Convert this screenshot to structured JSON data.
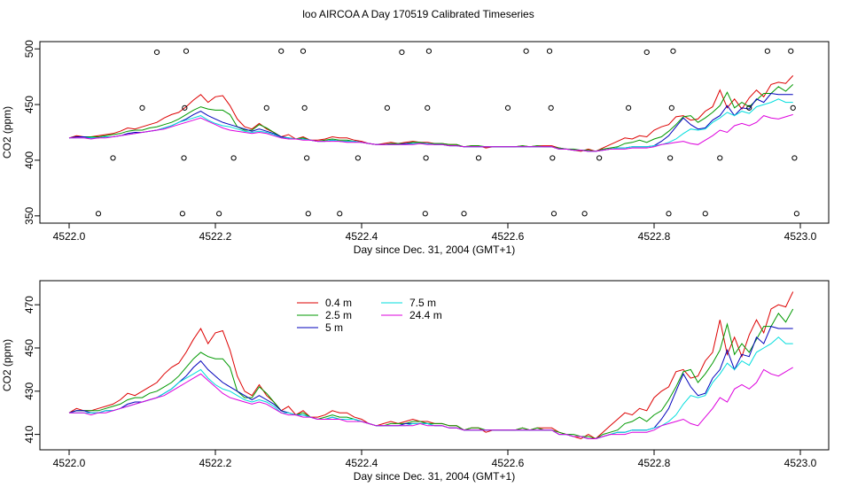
{
  "title": "loo AIRCOA A  Day 170519  Calibrated Timeseries",
  "chart_data": [
    {
      "type": "line",
      "xlabel": "Day since Dec. 31, 2004 (GMT+1)",
      "ylabel": "CO2 (ppm)",
      "xlim": [
        4522.0,
        4523.0
      ],
      "ylim": [
        350,
        500
      ],
      "x_ticks": [
        "4522.0",
        "4522.2",
        "4522.4",
        "4522.6",
        "4522.8",
        "4523.0"
      ],
      "y_ticks": [
        "350",
        "400",
        "450",
        "500"
      ],
      "series": [
        {
          "name": "0.4 m",
          "color": "#dd0000",
          "ref": "s04"
        },
        {
          "name": "2.5 m",
          "color": "#009900",
          "ref": "s25"
        },
        {
          "name": "5 m",
          "color": "#0000bb",
          "ref": "s5"
        },
        {
          "name": "7.5 m",
          "color": "#00dddd",
          "ref": "s75"
        },
        {
          "name": "24.4 m",
          "color": "#dd00dd",
          "ref": "s244"
        }
      ],
      "markers": [
        {
          "x": 4522.04,
          "y": 352
        },
        {
          "x": 4522.06,
          "y": 402
        },
        {
          "x": 4522.1,
          "y": 447
        },
        {
          "x": 4522.12,
          "y": 497
        },
        {
          "x": 4522.155,
          "y": 352
        },
        {
          "x": 4522.157,
          "y": 402
        },
        {
          "x": 4522.158,
          "y": 447
        },
        {
          "x": 4522.16,
          "y": 498
        },
        {
          "x": 4522.205,
          "y": 352
        },
        {
          "x": 4522.225,
          "y": 402
        },
        {
          "x": 4522.27,
          "y": 447
        },
        {
          "x": 4522.29,
          "y": 498
        },
        {
          "x": 4522.32,
          "y": 498
        },
        {
          "x": 4522.322,
          "y": 447
        },
        {
          "x": 4522.325,
          "y": 402
        },
        {
          "x": 4522.327,
          "y": 352
        },
        {
          "x": 4522.37,
          "y": 352
        },
        {
          "x": 4522.395,
          "y": 402
        },
        {
          "x": 4522.435,
          "y": 447
        },
        {
          "x": 4522.455,
          "y": 497
        },
        {
          "x": 4522.487,
          "y": 352
        },
        {
          "x": 4522.488,
          "y": 402
        },
        {
          "x": 4522.49,
          "y": 447
        },
        {
          "x": 4522.492,
          "y": 498
        },
        {
          "x": 4522.54,
          "y": 352
        },
        {
          "x": 4522.56,
          "y": 402
        },
        {
          "x": 4522.6,
          "y": 447
        },
        {
          "x": 4522.625,
          "y": 498
        },
        {
          "x": 4522.657,
          "y": 498
        },
        {
          "x": 4522.659,
          "y": 447
        },
        {
          "x": 4522.661,
          "y": 402
        },
        {
          "x": 4522.663,
          "y": 352
        },
        {
          "x": 4522.705,
          "y": 352
        },
        {
          "x": 4522.725,
          "y": 402
        },
        {
          "x": 4522.765,
          "y": 447
        },
        {
          "x": 4522.79,
          "y": 497
        },
        {
          "x": 4522.82,
          "y": 352
        },
        {
          "x": 4522.822,
          "y": 402
        },
        {
          "x": 4522.824,
          "y": 447
        },
        {
          "x": 4522.826,
          "y": 498
        },
        {
          "x": 4522.87,
          "y": 352
        },
        {
          "x": 4522.89,
          "y": 402
        },
        {
          "x": 4522.93,
          "y": 447
        },
        {
          "x": 4522.955,
          "y": 498
        },
        {
          "x": 4522.987,
          "y": 498
        },
        {
          "x": 4522.99,
          "y": 447
        },
        {
          "x": 4522.992,
          "y": 402
        },
        {
          "x": 4522.995,
          "y": 352
        }
      ]
    },
    {
      "type": "line",
      "xlabel": "Day since Dec. 31, 2004 (GMT+1)",
      "ylabel": "CO2 (ppm)",
      "xlim": [
        4522.0,
        4523.0
      ],
      "ylim": [
        406,
        478
      ],
      "x_ticks": [
        "4522.0",
        "4522.2",
        "4522.4",
        "4522.6",
        "4522.8",
        "4523.0"
      ],
      "y_ticks": [
        "410",
        "430",
        "450",
        "470"
      ],
      "legend": "top-left",
      "series": [
        {
          "name": "0.4 m",
          "color": "#dd0000",
          "ref": "s04"
        },
        {
          "name": "2.5 m",
          "color": "#009900",
          "ref": "s25"
        },
        {
          "name": "5 m",
          "color": "#0000bb",
          "ref": "s5"
        },
        {
          "name": "7.5 m",
          "color": "#00dddd",
          "ref": "s75"
        },
        {
          "name": "24.4 m",
          "color": "#dd00dd",
          "ref": "s244"
        }
      ]
    }
  ],
  "series_values": {
    "x": [
      4522.0,
      4522.01,
      4522.02,
      4522.03,
      4522.04,
      4522.05,
      4522.06,
      4522.07,
      4522.08,
      4522.09,
      4522.1,
      4522.11,
      4522.12,
      4522.13,
      4522.14,
      4522.15,
      4522.16,
      4522.17,
      4522.18,
      4522.19,
      4522.2,
      4522.21,
      4522.22,
      4522.23,
      4522.24,
      4522.25,
      4522.26,
      4522.27,
      4522.28,
      4522.29,
      4522.3,
      4522.31,
      4522.32,
      4522.33,
      4522.34,
      4522.35,
      4522.36,
      4522.37,
      4522.38,
      4522.39,
      4522.4,
      4522.41,
      4522.42,
      4522.43,
      4522.44,
      4522.45,
      4522.46,
      4522.47,
      4522.48,
      4522.49,
      4522.5,
      4522.51,
      4522.52,
      4522.53,
      4522.54,
      4522.55,
      4522.56,
      4522.57,
      4522.58,
      4522.59,
      4522.6,
      4522.61,
      4522.62,
      4522.63,
      4522.64,
      4522.65,
      4522.66,
      4522.67,
      4522.68,
      4522.69,
      4522.7,
      4522.71,
      4522.72,
      4522.73,
      4522.74,
      4522.75,
      4522.76,
      4522.77,
      4522.78,
      4522.79,
      4522.8,
      4522.81,
      4522.82,
      4522.83,
      4522.84,
      4522.85,
      4522.86,
      4522.87,
      4522.88,
      4522.89,
      4522.9,
      4522.91,
      4522.92,
      4522.93,
      4522.94,
      4522.95,
      4522.96,
      4522.97,
      4522.98,
      4522.99
    ],
    "s04": [
      420,
      422,
      421,
      421,
      422,
      423,
      424,
      426,
      429,
      428,
      430,
      432,
      434,
      438,
      441,
      443,
      448,
      454,
      459,
      452,
      457,
      458,
      449,
      437,
      430,
      428,
      433,
      428,
      425,
      421,
      423,
      419,
      421,
      418,
      418,
      419,
      421,
      420,
      420,
      418,
      417,
      415,
      414,
      415,
      416,
      415,
      416,
      417,
      416,
      416,
      415,
      415,
      414,
      414,
      412,
      413,
      413,
      411,
      412,
      412,
      412,
      412,
      413,
      412,
      413,
      413,
      413,
      411,
      410,
      409,
      408,
      410,
      408,
      411,
      414,
      417,
      420,
      419,
      422,
      421,
      427,
      430,
      432,
      439,
      440,
      436,
      437,
      444,
      448,
      463,
      447,
      455,
      446,
      456,
      463,
      457,
      468,
      470,
      469,
      476
    ],
    "s25": [
      420,
      421,
      421,
      421,
      421,
      422,
      423,
      424,
      426,
      427,
      427,
      429,
      430,
      432,
      434,
      437,
      441,
      445,
      448,
      446,
      445,
      445,
      441,
      430,
      427,
      427,
      432,
      429,
      425,
      421,
      420,
      419,
      420,
      418,
      417,
      418,
      419,
      418,
      418,
      417,
      416,
      415,
      414,
      414,
      415,
      415,
      415,
      416,
      416,
      415,
      415,
      415,
      414,
      414,
      412,
      413,
      413,
      412,
      412,
      412,
      412,
      412,
      413,
      412,
      413,
      412,
      412,
      411,
      410,
      410,
      409,
      409,
      408,
      410,
      411,
      412,
      415,
      416,
      418,
      416,
      419,
      421,
      426,
      432,
      439,
      440,
      434,
      438,
      443,
      449,
      461,
      447,
      452,
      448,
      454,
      460,
      460,
      466,
      462,
      468
    ],
    "s5": [
      420,
      421,
      421,
      420,
      420,
      421,
      421,
      422,
      424,
      425,
      425,
      426,
      427,
      429,
      431,
      434,
      437,
      441,
      444,
      440,
      437,
      434,
      432,
      430,
      428,
      426,
      428,
      426,
      424,
      421,
      420,
      419,
      419,
      418,
      417,
      417,
      418,
      417,
      417,
      417,
      416,
      415,
      414,
      414,
      414,
      414,
      415,
      415,
      415,
      415,
      414,
      414,
      413,
      413,
      412,
      412,
      412,
      412,
      412,
      412,
      412,
      412,
      412,
      412,
      412,
      412,
      412,
      410,
      410,
      409,
      409,
      408,
      408,
      409,
      410,
      411,
      411,
      412,
      412,
      412,
      413,
      417,
      422,
      430,
      438,
      432,
      428,
      429,
      436,
      440,
      449,
      440,
      447,
      446,
      455,
      452,
      460,
      459,
      459,
      459
    ],
    "s75": [
      420,
      420,
      420,
      420,
      420,
      421,
      421,
      422,
      423,
      424,
      425,
      426,
      427,
      429,
      431,
      434,
      436,
      438,
      440,
      436,
      433,
      431,
      430,
      428,
      426,
      425,
      426,
      425,
      423,
      420,
      420,
      419,
      419,
      418,
      417,
      417,
      418,
      417,
      417,
      417,
      416,
      415,
      414,
      414,
      414,
      414,
      414,
      415,
      415,
      415,
      414,
      414,
      413,
      413,
      412,
      412,
      412,
      412,
      412,
      412,
      412,
      412,
      412,
      412,
      412,
      412,
      412,
      410,
      410,
      409,
      409,
      408,
      408,
      409,
      410,
      411,
      411,
      412,
      412,
      412,
      413,
      414,
      416,
      419,
      424,
      428,
      427,
      428,
      434,
      438,
      443,
      440,
      444,
      442,
      448,
      450,
      452,
      455,
      452,
      452
    ],
    "s244": [
      420,
      420,
      420,
      419,
      420,
      420,
      421,
      422,
      423,
      424,
      425,
      426,
      427,
      428,
      430,
      432,
      434,
      436,
      438,
      435,
      432,
      429,
      427,
      426,
      425,
      424,
      425,
      424,
      422,
      420,
      419,
      419,
      418,
      418,
      417,
      417,
      417,
      417,
      416,
      416,
      416,
      415,
      414,
      414,
      414,
      414,
      414,
      414,
      415,
      414,
      414,
      414,
      413,
      413,
      412,
      412,
      412,
      412,
      412,
      412,
      412,
      412,
      412,
      412,
      412,
      412,
      412,
      410,
      410,
      409,
      409,
      408,
      408,
      409,
      410,
      410,
      410,
      411,
      411,
      411,
      412,
      414,
      415,
      416,
      417,
      415,
      414,
      418,
      422,
      427,
      425,
      431,
      433,
      431,
      434,
      440,
      438,
      437,
      439,
      441
    ]
  }
}
